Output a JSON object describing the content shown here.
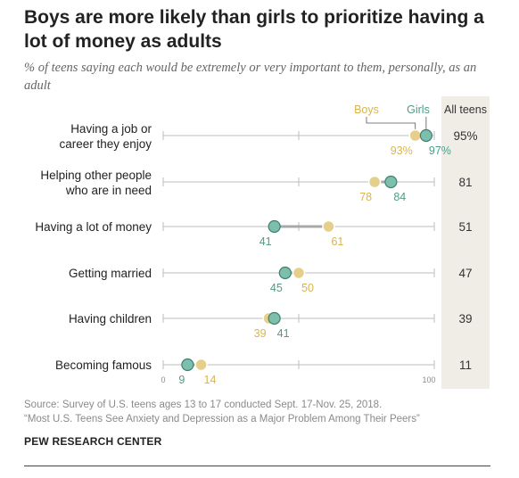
{
  "title": "Boys are more likely than girls to prioritize having a lot of money as adults",
  "subtitle": "% of teens saying each would be extremely or very important to them, personally, as an adult",
  "chart_data": {
    "type": "dot",
    "x_axis": {
      "min": 0,
      "max": 100,
      "tick_labels": [
        "0",
        "100"
      ],
      "grid": false
    },
    "legend": [
      {
        "name": "Boys",
        "color": "#e6cf8a"
      },
      {
        "name": "Girls",
        "color": "#7dbfad"
      }
    ],
    "all_teens_header": "All teens",
    "categories": [
      {
        "label_lines": [
          "Having a job or",
          "career they enjoy"
        ],
        "boys": 93,
        "girls": 97,
        "all_teens": "95%",
        "boys_label": "93%",
        "girls_label": "97%"
      },
      {
        "label_lines": [
          "Helping other people",
          "who are in need"
        ],
        "boys": 78,
        "girls": 84,
        "all_teens": "81",
        "boys_label": "78",
        "girls_label": "84"
      },
      {
        "label_lines": [
          "Having a lot of money"
        ],
        "boys": 61,
        "girls": 41,
        "all_teens": "51",
        "boys_label": "61",
        "girls_label": "41"
      },
      {
        "label_lines": [
          "Getting married"
        ],
        "boys": 50,
        "girls": 45,
        "all_teens": "47",
        "boys_label": "50",
        "girls_label": "45"
      },
      {
        "label_lines": [
          "Having children"
        ],
        "boys": 39,
        "girls": 41,
        "all_teens": "39",
        "boys_label": "39",
        "girls_label": "41"
      },
      {
        "label_lines": [
          "Becoming famous"
        ],
        "boys": 14,
        "girls": 9,
        "all_teens": "11",
        "boys_label": "14",
        "girls_label": "9"
      }
    ],
    "colors": {
      "boys": "#e6cf8a",
      "boys_text": "#d9b54f",
      "girls": "#7dbfad",
      "girls_text": "#4f9c87",
      "line": "#bdbdbd",
      "all_teens_bg": "#efede6"
    }
  },
  "source_lines": [
    "Source: Survey of U.S. teens ages 13 to 17 conducted Sept. 17-Nov. 25, 2018.",
    "“Most U.S. Teens See Anxiety and Depression as a Major Problem Among Their Peers”"
  ],
  "credit": "PEW RESEARCH CENTER"
}
